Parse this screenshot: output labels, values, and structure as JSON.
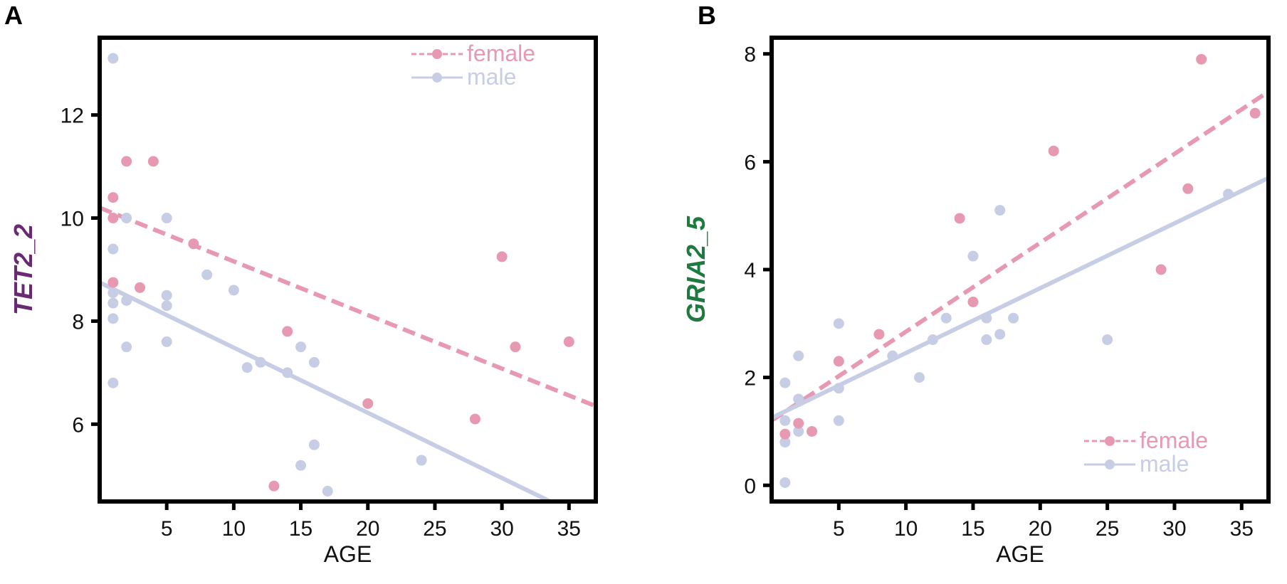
{
  "colors": {
    "female": "#e899b2",
    "male": "#c8cde6",
    "ylabel_A": "#6a2a73",
    "ylabel_B": "#1e7a3e"
  },
  "chart_data": [
    {
      "type": "scatter",
      "panel": "A",
      "xlabel": "AGE",
      "ylabel": "TET2_2",
      "xlim": [
        0,
        37
      ],
      "ylim": [
        4.5,
        13.5
      ],
      "xticks": [
        5,
        10,
        15,
        20,
        25,
        30,
        35
      ],
      "yticks": [
        6,
        8,
        10,
        12
      ],
      "legend": {
        "position": "top-right"
      },
      "series": [
        {
          "name": "female",
          "line": "dashed",
          "fit": [
            [
              0,
              10.2
            ],
            [
              37,
              6.35
            ]
          ],
          "points": [
            [
              1,
              10.4
            ],
            [
              1,
              10.0
            ],
            [
              1,
              8.75
            ],
            [
              2,
              11.1
            ],
            [
              3,
              8.65
            ],
            [
              4,
              11.1
            ],
            [
              7,
              9.5
            ],
            [
              14,
              7.8
            ],
            [
              13,
              4.8
            ],
            [
              20,
              6.4
            ],
            [
              28,
              6.1
            ],
            [
              30,
              9.25
            ],
            [
              31,
              7.5
            ],
            [
              35,
              7.6
            ]
          ]
        },
        {
          "name": "male",
          "line": "solid",
          "fit": [
            [
              0,
              8.75
            ],
            [
              34,
              4.45
            ]
          ],
          "points": [
            [
              1,
              13.1
            ],
            [
              1,
              9.4
            ],
            [
              1,
              8.55
            ],
            [
              1,
              8.35
            ],
            [
              1,
              8.05
            ],
            [
              1,
              6.8
            ],
            [
              2,
              10.0
            ],
            [
              2,
              8.4
            ],
            [
              2,
              7.5
            ],
            [
              5,
              10.0
            ],
            [
              5,
              8.5
            ],
            [
              5,
              8.3
            ],
            [
              5,
              7.6
            ],
            [
              8,
              8.9
            ],
            [
              10,
              8.6
            ],
            [
              11,
              7.1
            ],
            [
              12,
              7.2
            ],
            [
              14,
              7.0
            ],
            [
              15,
              7.5
            ],
            [
              16,
              7.2
            ],
            [
              15,
              5.2
            ],
            [
              16,
              5.6
            ],
            [
              17,
              4.7
            ],
            [
              24,
              5.3
            ]
          ]
        }
      ]
    },
    {
      "type": "scatter",
      "panel": "B",
      "xlabel": "AGE",
      "ylabel": "GRIA2_5",
      "xlim": [
        0,
        37
      ],
      "ylim": [
        -0.3,
        8.3
      ],
      "xticks": [
        5,
        10,
        15,
        20,
        25,
        30,
        35
      ],
      "yticks": [
        0,
        2,
        4,
        6,
        8
      ],
      "legend": {
        "position": "bottom-right"
      },
      "series": [
        {
          "name": "female",
          "line": "dashed",
          "fit": [
            [
              0,
              1.2
            ],
            [
              37,
              7.3
            ]
          ],
          "points": [
            [
              1,
              0.95
            ],
            [
              2,
              1.15
            ],
            [
              3,
              1.0
            ],
            [
              5,
              2.3
            ],
            [
              8,
              2.8
            ],
            [
              14,
              4.95
            ],
            [
              15,
              3.4
            ],
            [
              21,
              6.2
            ],
            [
              29,
              4.0
            ],
            [
              31,
              5.5
            ],
            [
              32,
              7.9
            ],
            [
              36,
              6.9
            ]
          ]
        },
        {
          "name": "male",
          "line": "solid",
          "fit": [
            [
              0,
              1.25
            ],
            [
              37,
              5.7
            ]
          ],
          "points": [
            [
              1,
              1.9
            ],
            [
              1,
              1.2
            ],
            [
              1,
              0.8
            ],
            [
              1,
              0.05
            ],
            [
              2,
              2.4
            ],
            [
              2,
              1.6
            ],
            [
              2,
              1.0
            ],
            [
              5,
              3.0
            ],
            [
              5,
              1.8
            ],
            [
              5,
              1.2
            ],
            [
              9,
              2.4
            ],
            [
              11,
              2.0
            ],
            [
              12,
              2.7
            ],
            [
              13,
              3.1
            ],
            [
              15,
              4.25
            ],
            [
              16,
              3.1
            ],
            [
              16,
              2.7
            ],
            [
              17,
              5.1
            ],
            [
              17,
              2.8
            ],
            [
              18,
              3.1
            ],
            [
              25,
              2.7
            ],
            [
              34,
              5.4
            ]
          ]
        }
      ]
    }
  ],
  "panels": [
    {
      "letter": "A",
      "legend": [
        "female",
        "male"
      ]
    },
    {
      "letter": "B",
      "legend": [
        "female",
        "male"
      ]
    }
  ]
}
